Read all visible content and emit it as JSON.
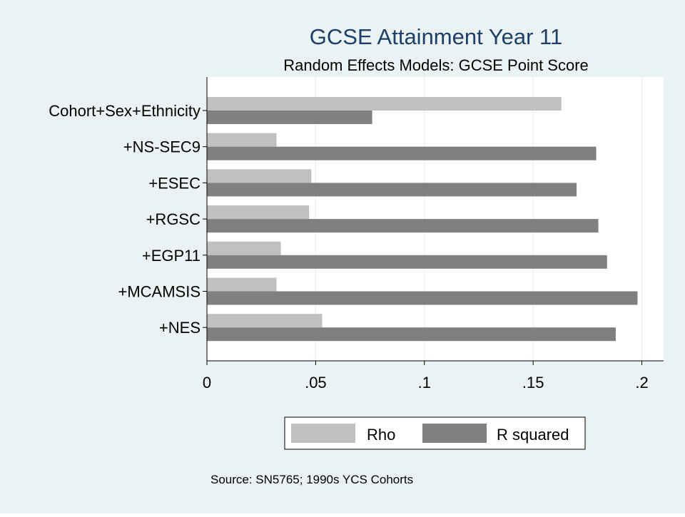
{
  "chart_data": {
    "type": "bar",
    "orientation": "horizontal",
    "title": "GCSE Attainment Year 11",
    "subtitle": "Random Effects Models: GCSE Point Score",
    "categories": [
      "Cohort+Sex+Ethnicity",
      "+NS-SEC9",
      "+ESEC",
      "+RGSC",
      "+EGP11",
      "+MCAMSIS",
      "+NES"
    ],
    "series": [
      {
        "name": "Rho",
        "color": "#c0c0c0",
        "values": [
          0.163,
          0.032,
          0.048,
          0.047,
          0.034,
          0.032,
          0.053
        ]
      },
      {
        "name": "R squared",
        "color": "#808080",
        "values": [
          0.076,
          0.179,
          0.17,
          0.18,
          0.184,
          0.198,
          0.188
        ]
      }
    ],
    "xlim": [
      0,
      0.21
    ],
    "xticks": [
      0,
      0.05,
      0.1,
      0.15,
      0.2
    ],
    "xtick_labels": [
      "0",
      ".05",
      ".1",
      ".15",
      ".2"
    ],
    "grid": true,
    "legend_position": "bottom",
    "note": "Source: SN5765; 1990s YCS Cohorts",
    "colors": {
      "background": "#eaf2f3",
      "plot_background": "#ffffff",
      "title": "#1e3f66",
      "gridline": "#eaf2f3"
    }
  }
}
